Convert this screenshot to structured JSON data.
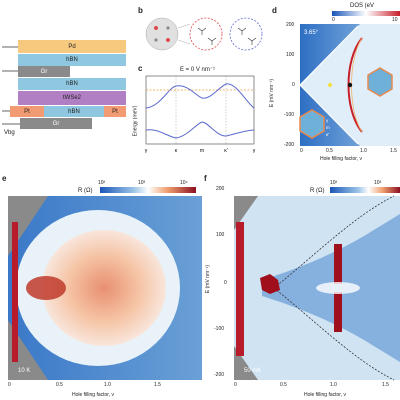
{
  "panel_a": {
    "layers": {
      "pd": "Pd",
      "hbn_top": "hBN",
      "gr_top": "Gr",
      "hbn_mid": "hBN",
      "twse2": "tWSe2",
      "pt_left": "Pt",
      "hbn_bottom": "hBN",
      "pt_right": "Pt",
      "gr_bottom": "Gr"
    },
    "vbg_label": "Vbg",
    "colors": {
      "pd": "#f7c97f",
      "hbn": "#8fc6e0",
      "gr": "#8a8a8a",
      "twse2": "#b17fc4",
      "pt": "#f29a72"
    }
  },
  "panel_b": {
    "letter": "b"
  },
  "panel_c": {
    "letter": "c",
    "field_label": "E = 0 V nm⁻¹",
    "ylabel": "Energy (meV)",
    "kpoints": [
      "γ",
      "κ",
      "m",
      "κ'",
      "γ"
    ]
  },
  "panel_d": {
    "letter": "d",
    "angle": "3.65°",
    "colorbar_label": "DOS (eV",
    "colorbar_ticks": [
      "0",
      "10"
    ],
    "xlabel": "Hole filling factor, ν",
    "ylabel": "E (mV nm⁻¹)",
    "xticks": [
      "0",
      "0.5",
      "1.0",
      "1.5"
    ],
    "yticks": [
      "200",
      "100",
      "0",
      "-100",
      "-200"
    ],
    "bz_labels": [
      "γ",
      "m",
      "κ'"
    ]
  },
  "panel_e": {
    "letter": "e",
    "colorbar_label": "R (Ω)",
    "colorbar_ticks": [
      "10²",
      "10³",
      "10⁴"
    ],
    "temperature": "10 K",
    "xlabel": "Hole filling factor, ν",
    "xticks": [
      "0",
      "0.5",
      "1.0",
      "1.5"
    ]
  },
  "panel_f": {
    "letter": "f",
    "colorbar_label": "R (Ω)",
    "colorbar_ticks": [
      "10²",
      "10³"
    ],
    "temperature": "50 mK",
    "xlabel": "Hole filling factor, ν",
    "ylabel": "E (mV nm⁻¹)",
    "xticks": [
      "0",
      "0.5",
      "1.0",
      "1.5"
    ],
    "yticks": [
      "200",
      "100",
      "0",
      "-100",
      "-200"
    ]
  }
}
